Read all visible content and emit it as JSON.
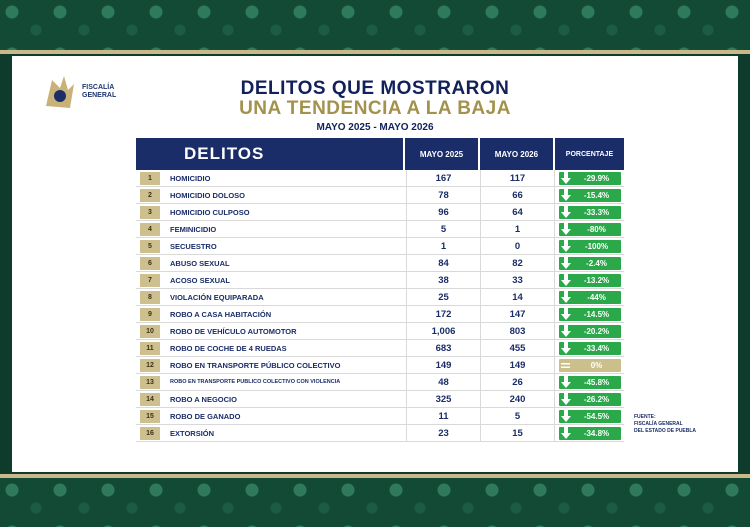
{
  "header": {
    "title_line1": "DELITOS QUE MOSTRARON",
    "title_line2": "UNA TENDENCIA A LA BAJA",
    "period": "MAYO 2025 - MAYO 2026"
  },
  "logo": {
    "line1": "FISCALÍA",
    "line2": "GENERAL"
  },
  "colors": {
    "navy": "#1a2d68",
    "gold": "#a3924d",
    "green": "#2aa84a",
    "band": "#124a36"
  },
  "table": {
    "headers": {
      "crimes": "DELITOS",
      "year1": "MAYO 2025",
      "year2": "MAYO 2026",
      "percent": "PORCENTAJE"
    },
    "rows": [
      {
        "n": "1",
        "name": "HOMICIDIO",
        "y1": "167",
        "y2": "117",
        "pct": "-29.9%"
      },
      {
        "n": "2",
        "name": "HOMICIDIO DOLOSO",
        "y1": "78",
        "y2": "66",
        "pct": "-15.4%"
      },
      {
        "n": "3",
        "name": "HOMICIDIO CULPOSO",
        "y1": "96",
        "y2": "64",
        "pct": "-33.3%"
      },
      {
        "n": "4",
        "name": "FEMINICIDIO",
        "y1": "5",
        "y2": "1",
        "pct": "-80%"
      },
      {
        "n": "5",
        "name": "SECUESTRO",
        "y1": "1",
        "y2": "0",
        "pct": "-100%"
      },
      {
        "n": "6",
        "name": "ABUSO SEXUAL",
        "y1": "84",
        "y2": "82",
        "pct": "-2.4%"
      },
      {
        "n": "7",
        "name": "ACOSO SEXUAL",
        "y1": "38",
        "y2": "33",
        "pct": "-13.2%"
      },
      {
        "n": "8",
        "name": "VIOLACIÓN EQUIPARADA",
        "y1": "25",
        "y2": "14",
        "pct": "-44%"
      },
      {
        "n": "9",
        "name": "ROBO A CASA HABITACIÓN",
        "y1": "172",
        "y2": "147",
        "pct": "-14.5%"
      },
      {
        "n": "10",
        "name": "ROBO DE VEHÍCULO AUTOMOTOR",
        "y1": "1,006",
        "y2": "803",
        "pct": "-20.2%"
      },
      {
        "n": "11",
        "name": "ROBO DE COCHE DE 4 RUEDAS",
        "y1": "683",
        "y2": "455",
        "pct": "-33.4%"
      },
      {
        "n": "12",
        "name": "ROBO EN TRANSPORTE PÚBLICO COLECTIVO",
        "y1": "149",
        "y2": "149",
        "pct": "0%"
      },
      {
        "n": "13",
        "name": "ROBO EN TRANSPORTE PÚBLICO COLECTIVO CON VIOLENCIA",
        "y1": "48",
        "y2": "26",
        "pct": "-45.8%"
      },
      {
        "n": "14",
        "name": "ROBO A NEGOCIO",
        "y1": "325",
        "y2": "240",
        "pct": "-26.2%"
      },
      {
        "n": "15",
        "name": "ROBO DE GANADO",
        "y1": "11",
        "y2": "5",
        "pct": "-54.5%"
      },
      {
        "n": "16",
        "name": "EXTORSIÓN",
        "y1": "23",
        "y2": "15",
        "pct": "-34.8%"
      }
    ]
  },
  "source": {
    "label": "FUENTE:",
    "line1": "FISCALÍA GENERAL",
    "line2": "DEL ESTADO DE PUEBLA"
  }
}
